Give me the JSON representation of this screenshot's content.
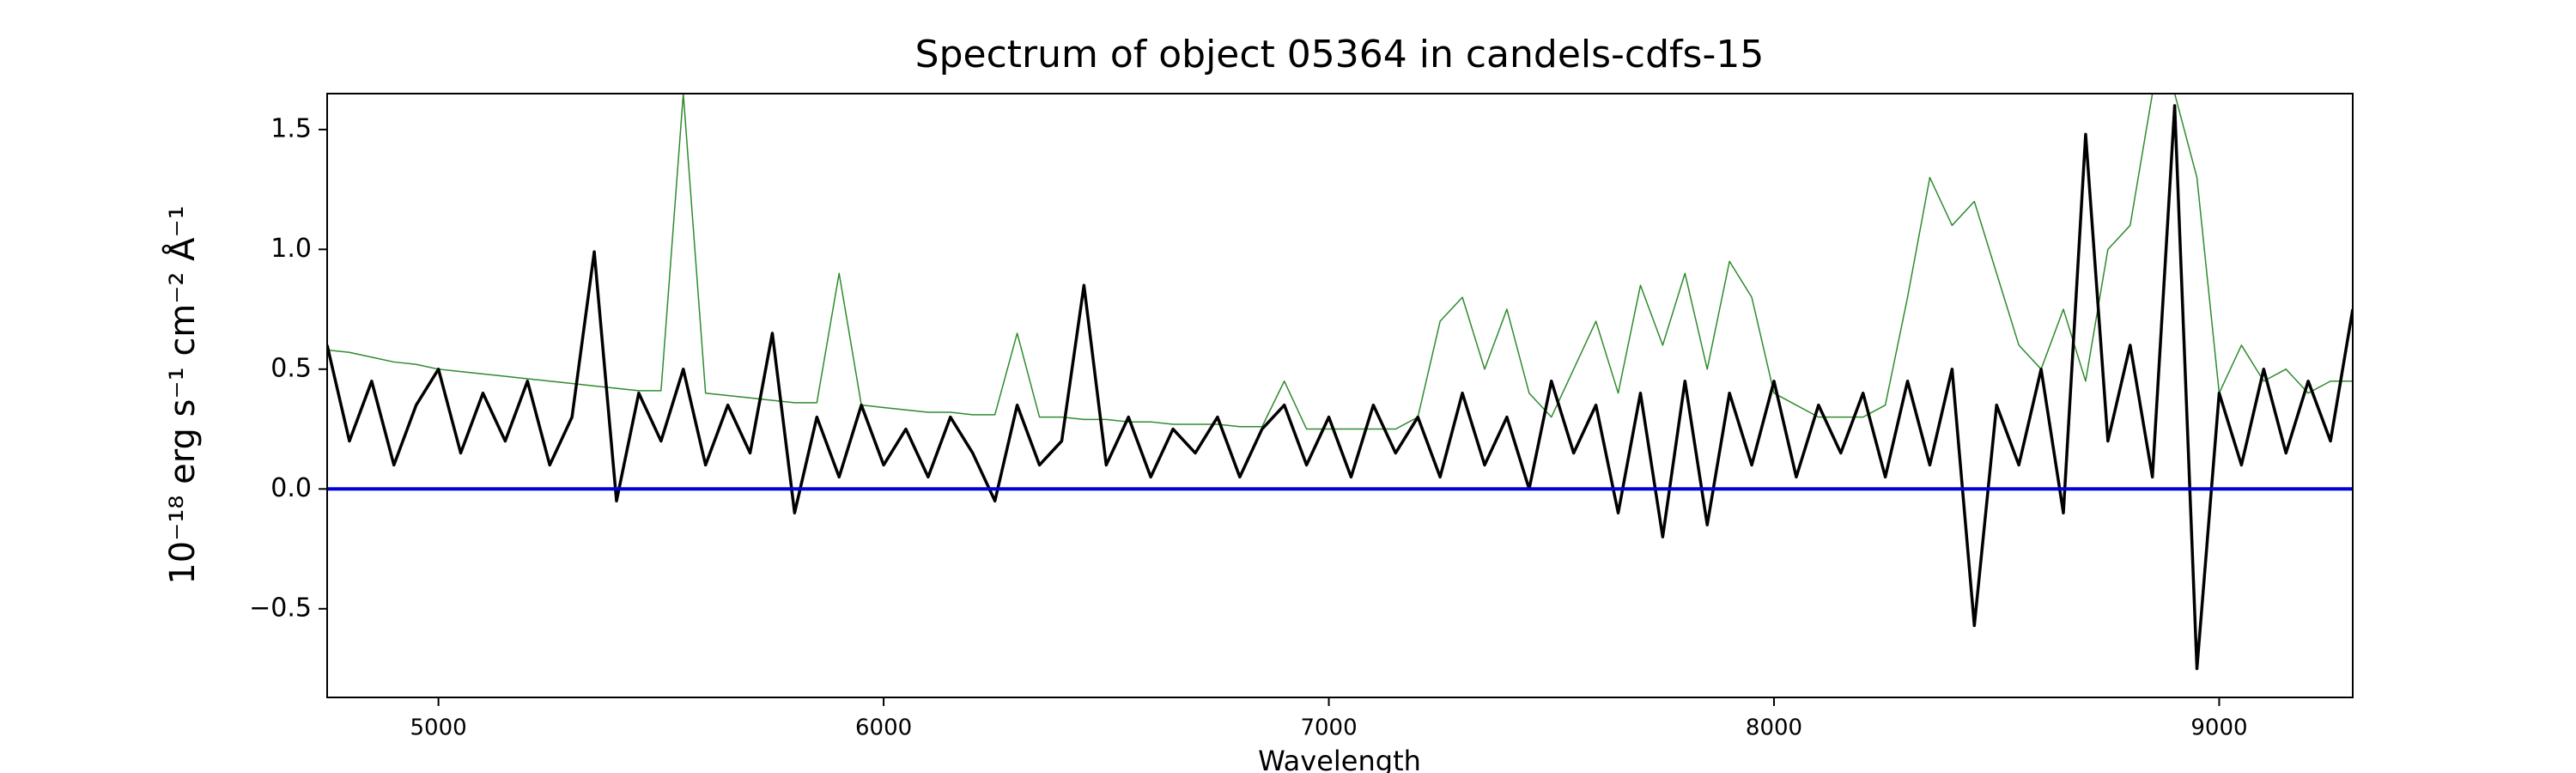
{
  "chart_data": {
    "type": "line",
    "title": "Spectrum of object 05364 in candels-cdfs-15",
    "x_label": "Wavelength",
    "y_label": "10⁻¹⁸ erg s⁻¹ cm⁻² Å⁻¹",
    "x": [
      4750,
      4800,
      4850,
      4900,
      4950,
      5000,
      5050,
      5100,
      5150,
      5200,
      5250,
      5300,
      5350,
      5400,
      5450,
      5500,
      5550,
      5600,
      5650,
      5700,
      5750,
      5800,
      5850,
      5900,
      5950,
      6000,
      6050,
      6100,
      6150,
      6200,
      6250,
      6300,
      6350,
      6400,
      6450,
      6500,
      6550,
      6600,
      6650,
      6700,
      6750,
      6800,
      6850,
      6900,
      6950,
      7000,
      7050,
      7100,
      7150,
      7200,
      7250,
      7300,
      7350,
      7400,
      7450,
      7500,
      7550,
      7600,
      7650,
      7700,
      7750,
      7800,
      7850,
      7900,
      7950,
      8000,
      8050,
      8100,
      8150,
      8200,
      8250,
      8300,
      8350,
      8400,
      8450,
      8500,
      8550,
      8600,
      8650,
      8700,
      8750,
      8800,
      8850,
      8900,
      8950,
      9000,
      9050,
      9100,
      9150,
      9200,
      9250,
      9300
    ],
    "series": [
      {
        "color": "#2e8b2e",
        "width": 1.5,
        "values": [
          0.58,
          0.57,
          0.55,
          0.53,
          0.52,
          0.5,
          0.49,
          0.48,
          0.47,
          0.46,
          0.45,
          0.44,
          0.43,
          0.42,
          0.41,
          0.41,
          1.65,
          0.4,
          0.39,
          0.38,
          0.37,
          0.36,
          0.36,
          0.9,
          0.35,
          0.34,
          0.33,
          0.32,
          0.32,
          0.31,
          0.31,
          0.65,
          0.3,
          0.3,
          0.29,
          0.29,
          0.28,
          0.28,
          0.27,
          0.27,
          0.27,
          0.26,
          0.26,
          0.45,
          0.25,
          0.25,
          0.25,
          0.25,
          0.25,
          0.3,
          0.7,
          0.8,
          0.5,
          0.75,
          0.4,
          0.3,
          0.5,
          0.7,
          0.4,
          0.85,
          0.6,
          0.9,
          0.5,
          0.95,
          0.8,
          0.4,
          0.35,
          0.3,
          0.3,
          0.3,
          0.35,
          0.8,
          1.3,
          1.1,
          1.2,
          0.9,
          0.6,
          0.5,
          0.75,
          0.45,
          1.0,
          1.1,
          1.65,
          1.65,
          1.3,
          0.4,
          0.6,
          0.45,
          0.5,
          0.4,
          0.45,
          0.45
        ]
      },
      {
        "color": "#000000",
        "width": 3.5,
        "values": [
          0.6,
          0.2,
          0.45,
          0.1,
          0.35,
          0.5,
          0.15,
          0.4,
          0.2,
          0.45,
          0.1,
          0.3,
          0.99,
          -0.05,
          0.4,
          0.2,
          0.5,
          0.1,
          0.35,
          0.15,
          0.65,
          -0.1,
          0.3,
          0.05,
          0.35,
          0.1,
          0.25,
          0.05,
          0.3,
          0.15,
          -0.05,
          0.35,
          0.1,
          0.2,
          0.85,
          0.1,
          0.3,
          0.05,
          0.25,
          0.15,
          0.3,
          0.05,
          0.25,
          0.35,
          0.1,
          0.3,
          0.05,
          0.35,
          0.15,
          0.3,
          0.05,
          0.4,
          0.1,
          0.3,
          0.0,
          0.45,
          0.15,
          0.35,
          -0.1,
          0.4,
          -0.2,
          0.45,
          -0.15,
          0.4,
          0.1,
          0.45,
          0.05,
          0.35,
          0.15,
          0.4,
          0.05,
          0.45,
          0.1,
          0.5,
          -0.57,
          0.35,
          0.1,
          0.5,
          -0.1,
          1.48,
          0.2,
          0.6,
          0.05,
          1.6,
          -0.75,
          0.4,
          0.1,
          0.5,
          0.15,
          0.45,
          0.2,
          0.75
        ]
      }
    ],
    "reference_line": {
      "y": 0,
      "color": "#0000dd"
    },
    "xlim": [
      4750,
      9300
    ],
    "ylim": [
      -0.87,
      1.65
    ],
    "xticks": [
      5000,
      6000,
      7000,
      8000,
      9000
    ],
    "yticks": [
      {
        "value": -0.5,
        "label": "−0.5"
      },
      {
        "value": 0,
        "label": "0.0"
      },
      0.5,
      {
        "value": 1,
        "label": "1.0"
      },
      1.5
    ]
  }
}
